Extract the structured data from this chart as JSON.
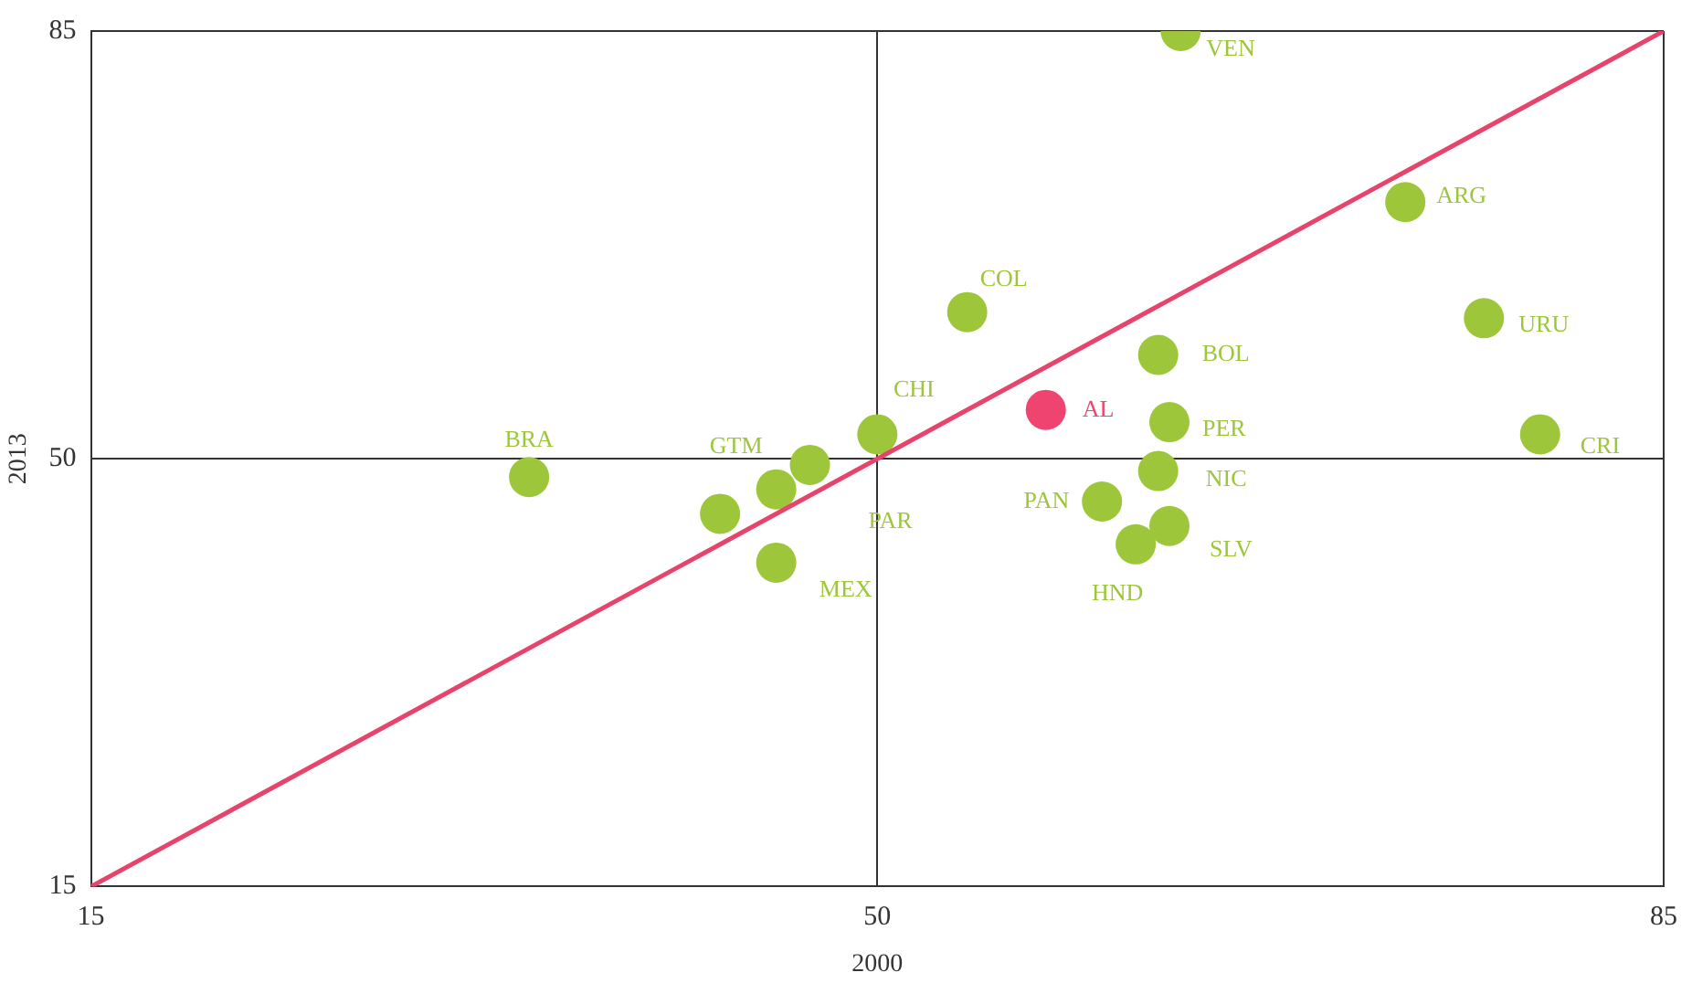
{
  "chart_data": {
    "type": "scatter",
    "xlabel": "2000",
    "ylabel": "2013",
    "xlim": [
      15,
      85
    ],
    "ylim": [
      15,
      85
    ],
    "xticks": [
      15,
      50,
      85
    ],
    "yticks": [
      15,
      50,
      85
    ],
    "grid": true,
    "marker": "circle",
    "series": [
      {
        "name": "BRA",
        "color": "#9dc63b",
        "x": [
          34.5
        ],
        "values": [
          48.5
        ]
      },
      {
        "color": "#9dc63b",
        "x": [
          43
        ],
        "values": [
          45.5
        ]
      },
      {
        "name": "GTM",
        "color": "#9dc63b",
        "x": [
          45.5
        ],
        "values": [
          47.5
        ]
      },
      {
        "name": "PAR",
        "color": "#9dc63b",
        "x": [
          47
        ],
        "values": [
          49.5
        ]
      },
      {
        "name": "CHI",
        "color": "#9dc63b",
        "x": [
          50
        ],
        "values": [
          52
        ]
      },
      {
        "name": "MEX",
        "color": "#9dc63b",
        "x": [
          45.5
        ],
        "values": [
          41.5
        ]
      },
      {
        "name": "COL",
        "color": "#9dc63b",
        "x": [
          54
        ],
        "values": [
          62
        ]
      },
      {
        "name": "AL",
        "color": "#ef4470",
        "x": [
          57.5
        ],
        "values": [
          54
        ]
      },
      {
        "name": "BOL",
        "color": "#9dc63b",
        "x": [
          62.5
        ],
        "values": [
          58.5
        ]
      },
      {
        "name": "PER",
        "color": "#9dc63b",
        "x": [
          63
        ],
        "values": [
          53
        ]
      },
      {
        "name": "NIC",
        "color": "#9dc63b",
        "x": [
          62.5
        ],
        "values": [
          49
        ]
      },
      {
        "name": "PAN",
        "color": "#9dc63b",
        "x": [
          60
        ],
        "values": [
          46.5
        ]
      },
      {
        "name": "SLV",
        "color": "#9dc63b",
        "x": [
          63
        ],
        "values": [
          44.5
        ]
      },
      {
        "name": "HND",
        "color": "#9dc63b",
        "x": [
          61.5
        ],
        "values": [
          43
        ]
      },
      {
        "name": "VEN",
        "color": "#9dc63b",
        "x": [
          63.5
        ],
        "values": [
          85
        ]
      },
      {
        "name": "ARG",
        "color": "#9dc63b",
        "x": [
          73.5
        ],
        "values": [
          71
        ]
      },
      {
        "name": "URU",
        "color": "#9dc63b",
        "x": [
          77
        ],
        "values": [
          61.5
        ]
      },
      {
        "name": "CRI",
        "color": "#9dc63b",
        "x": [
          79.5
        ],
        "values": [
          52
        ]
      },
      {
        "type": "line",
        "color": "#e8436b",
        "x": [
          15,
          85
        ],
        "values": [
          15,
          85
        ],
        "marker": "none"
      }
    ]
  }
}
